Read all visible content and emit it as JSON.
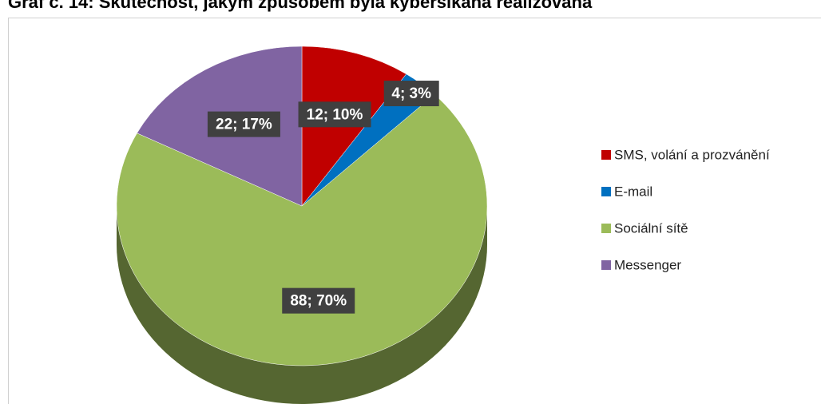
{
  "chart_data": {
    "type": "pie",
    "title": "Graf č. 14: Skutečnost, jakým způsobem byla kyberšikana realizována",
    "categories": [
      "SMS, volání a prozvánění",
      "E-mail",
      "Sociální sítě",
      "Messenger"
    ],
    "values": [
      12,
      4,
      88,
      22
    ],
    "value_labels": [
      "12; 10%",
      "4; 3%",
      "88; 70%",
      "22; 17%"
    ],
    "colors": [
      "#c00000",
      "#0070c0",
      "#9bbb59",
      "#8064a2"
    ],
    "legend": "right"
  }
}
